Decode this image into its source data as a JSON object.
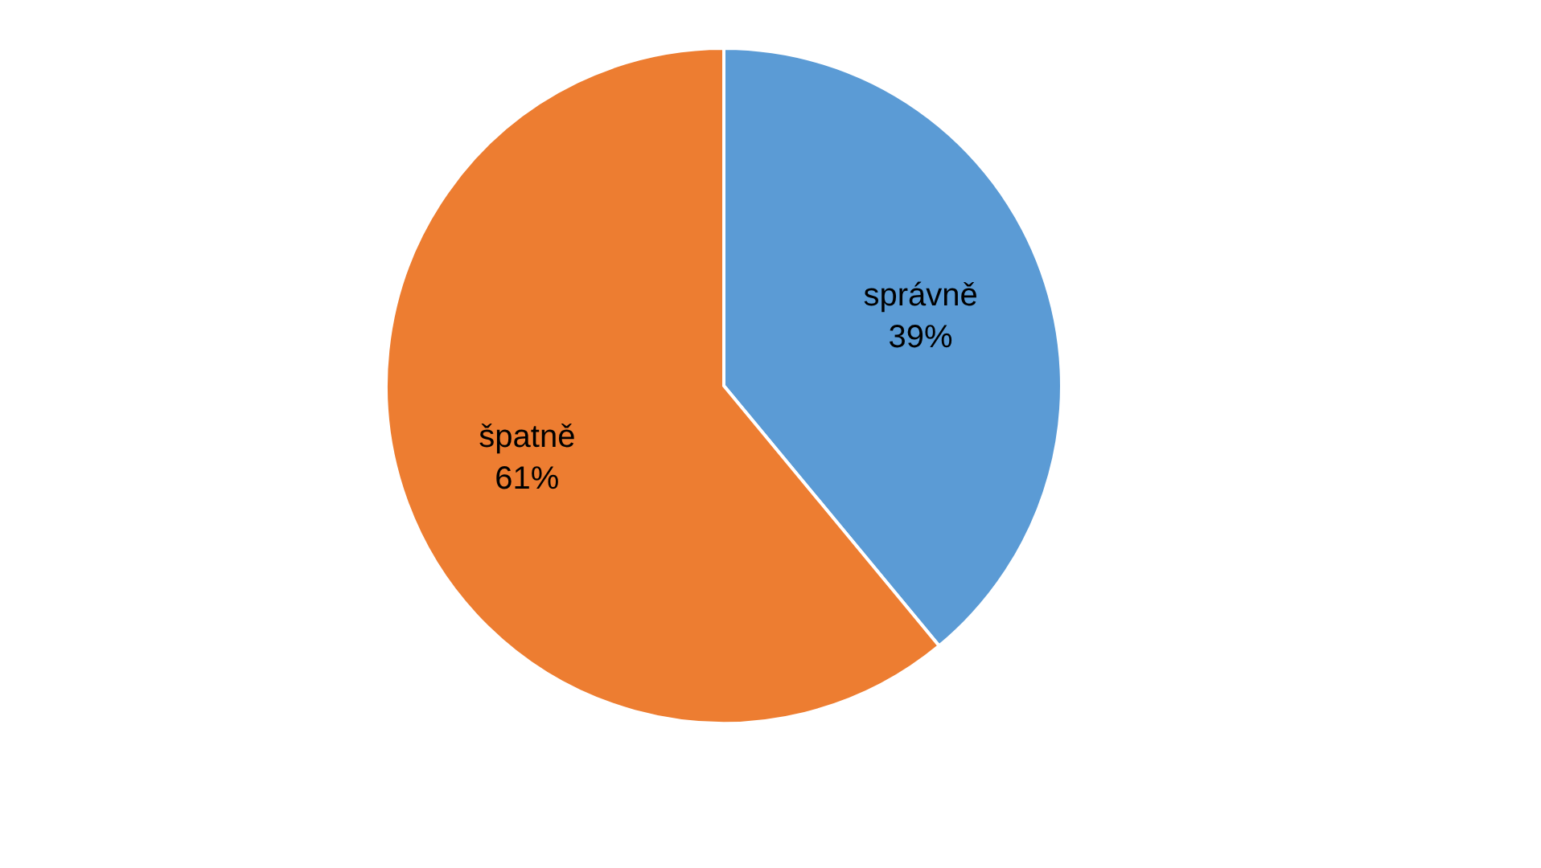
{
  "chart_data": {
    "type": "pie",
    "categories": [
      "správně",
      "špatně"
    ],
    "values": [
      39,
      61
    ],
    "value_labels": [
      "39%",
      "61%"
    ],
    "colors": [
      "#5b9bd5",
      "#ed7d31"
    ],
    "legend": false
  }
}
